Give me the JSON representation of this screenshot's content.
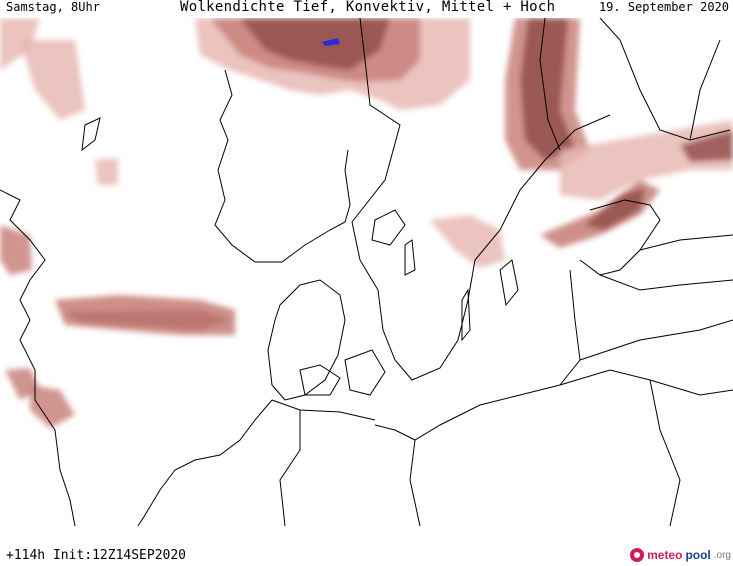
{
  "header": {
    "valid_time": "Samstag, 8Uhr",
    "title": "Wolkendichte  Tief, Konvektiv, Mittel + Hoch",
    "date": "19. September 2020"
  },
  "footer": {
    "run_info": "+114h Init:12Z14SEP2020"
  },
  "logo": {
    "part1": "meteo",
    "part2": "pool",
    "part3": ".org"
  },
  "map": {
    "layer": "cloud cover",
    "colors": {
      "cloud_light": "#e8b9b4",
      "cloud_medium": "#c9837c",
      "cloud_dense": "#8f4b46",
      "coastline": "#000000",
      "border": "#000000",
      "lake_marker": "#2b2bd6"
    }
  }
}
